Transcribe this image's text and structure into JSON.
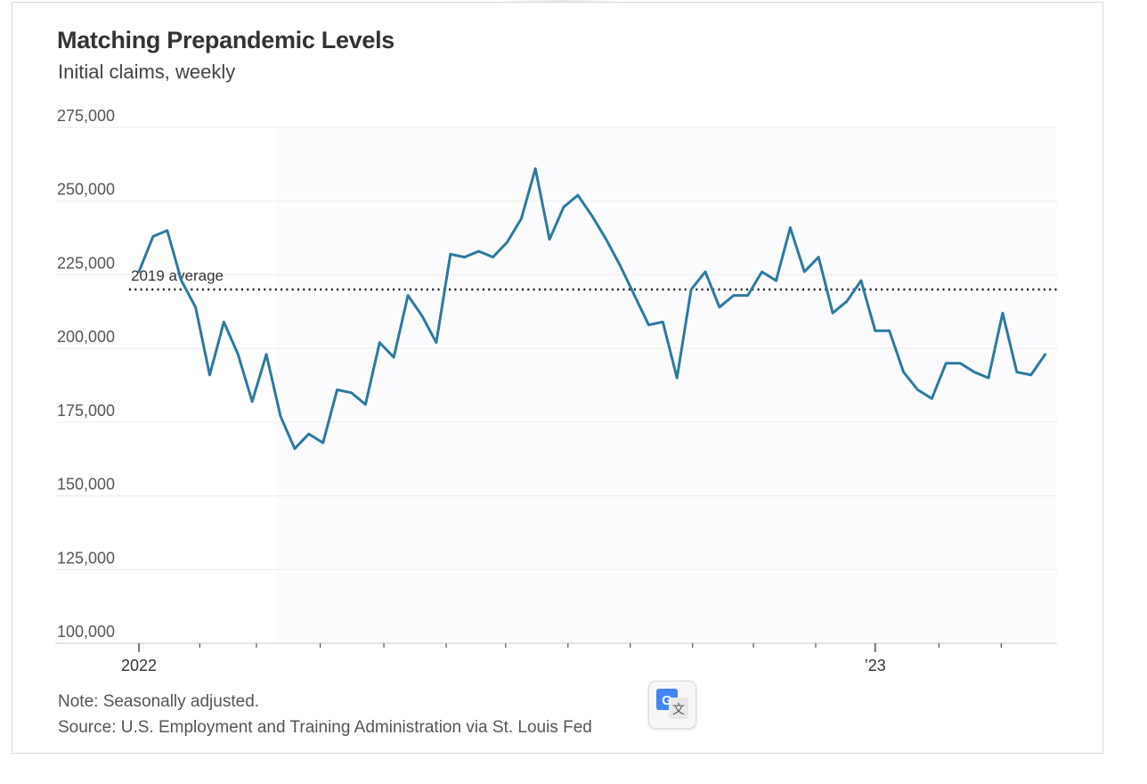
{
  "header": {
    "title": "Matching Prepandemic Levels",
    "subtitle": "Initial claims, weekly"
  },
  "footer": {
    "note": "Note: Seasonally adjusted.",
    "source": "Source: U.S. Employment and Training Administration via St. Louis Fed"
  },
  "translate_widget": {
    "icon": "google-translate-icon",
    "glyph": "G",
    "glyph2": "文"
  },
  "chart_data": {
    "type": "line",
    "title": "Matching Prepandemic Levels",
    "subtitle": "Initial claims, weekly",
    "xlabel": "",
    "ylabel": "",
    "ylim": [
      100000,
      275000
    ],
    "y_ticks": [
      100000,
      125000,
      150000,
      175000,
      200000,
      225000,
      250000,
      275000
    ],
    "y_tick_labels": [
      "100,000",
      "125,000",
      "150,000",
      "175,000",
      "200,000",
      "225,000",
      "250,000",
      "275,000"
    ],
    "x_tick_labels": [
      {
        "label": "2022",
        "week_index": 0
      },
      {
        "label": "’23",
        "week_index": 52
      }
    ],
    "x_minor_tick_weeks": [
      4.3,
      8.3,
      12.8,
      17.3,
      21.7,
      25.9,
      30.3,
      34.7,
      39.1,
      43.4,
      47.8,
      56.5,
      60.9
    ],
    "grid": true,
    "reference_line": {
      "label": "2019 average",
      "value": 220000
    },
    "colors": {
      "line": "#2b7aa0",
      "reference": "#222222",
      "grid": "#ececec"
    },
    "series": [
      {
        "values": [
          226000,
          238000,
          240000,
          223000,
          214000,
          191000,
          209000,
          198000,
          182000,
          198000,
          177000,
          166000,
          171000,
          168000,
          186000,
          185000,
          181000,
          202000,
          197000,
          218000,
          211000,
          202000,
          232000,
          231000,
          233000,
          231000,
          236000,
          244000,
          261000,
          237000,
          248000,
          252000,
          245000,
          237000,
          228000,
          218000,
          208000,
          209000,
          190000,
          220000,
          226000,
          214000,
          218000,
          218000,
          226000,
          223000,
          241000,
          226000,
          231000,
          212000,
          216000,
          223000,
          206000,
          206000,
          192000,
          186000,
          183000,
          195000,
          195000,
          192000,
          190000,
          212000,
          192000,
          191000,
          198000
        ]
      }
    ]
  }
}
